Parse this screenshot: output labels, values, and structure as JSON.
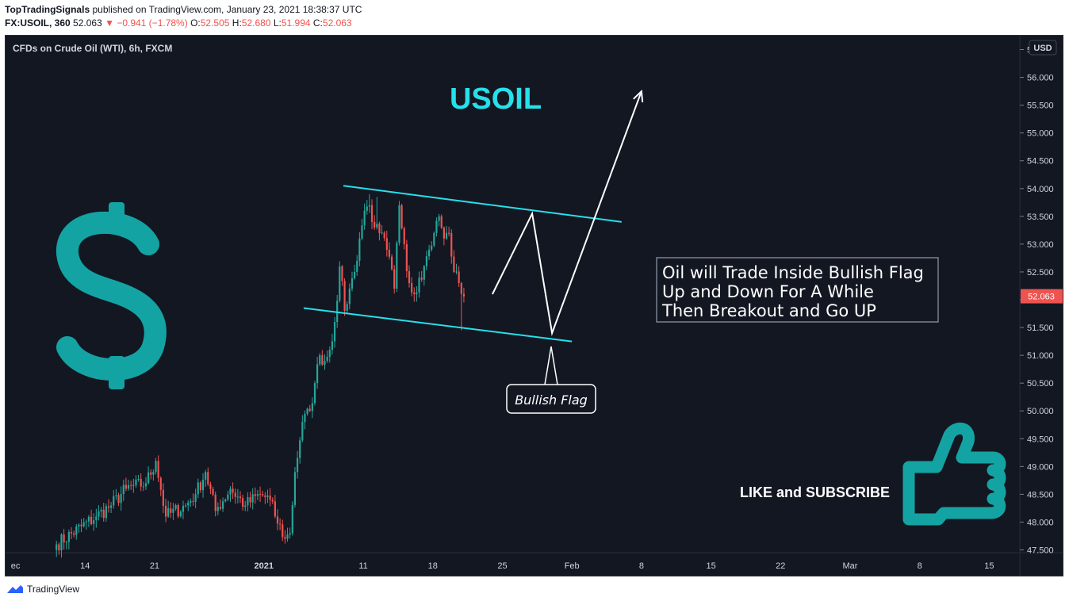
{
  "header": {
    "author": "TopTradingSignals",
    "published": "published on TradingView.com, January 23, 2021 18:38:37 UTC",
    "symbol": "FX:USOIL, 360",
    "last": "52.063",
    "change": "−0.941 (−1.78%)",
    "open_label": "O:",
    "open": "52.505",
    "high_label": "H:",
    "high": "52.680",
    "low_label": "L:",
    "low": "51.994",
    "close_label": "C:",
    "close": "52.063"
  },
  "footer": {
    "brand": "TradingView"
  },
  "colors": {
    "background": "#131722",
    "up": "#26a69a",
    "down": "#ef5350",
    "channel": "#26e0ea",
    "accent": "#14a3a3",
    "text": "#d1d4dc"
  },
  "chart_data": {
    "type": "candlestick",
    "title": "CFDs on Crude Oil (WTI), 6h, FXCM",
    "currency": "USD",
    "last_price_label": "52.063",
    "ylim": [
      47.45,
      56.75
    ],
    "y_ticks": [
      "56.500",
      "56.000",
      "55.500",
      "55.000",
      "54.500",
      "54.000",
      "53.500",
      "53.000",
      "52.500",
      "52.000",
      "51.500",
      "51.000",
      "50.500",
      "50.000",
      "49.500",
      "49.000",
      "48.500",
      "48.000",
      "47.500"
    ],
    "x_tick_labels": [
      "ec",
      "14",
      "21",
      "2021",
      "11",
      "18",
      "25",
      "Feb",
      "8",
      "15",
      "22",
      "Mar",
      "8",
      "15"
    ],
    "x_range": [
      "2020-12-06",
      "2021-03-18"
    ],
    "candles_start": "2020-12-11",
    "candles_per_day": 4,
    "close_anchors": [
      [
        0,
        47.6
      ],
      [
        16,
        48.1
      ],
      [
        22,
        48.3
      ],
      [
        28,
        48.6
      ],
      [
        36,
        48.7
      ],
      [
        40,
        49.1
      ],
      [
        44,
        48.1
      ],
      [
        52,
        48.3
      ],
      [
        56,
        48.5
      ],
      [
        60,
        48.9
      ],
      [
        64,
        48.2
      ],
      [
        70,
        48.6
      ],
      [
        76,
        48.3
      ],
      [
        82,
        48.5
      ],
      [
        86,
        48.4
      ],
      [
        88,
        48.1
      ],
      [
        92,
        47.7
      ],
      [
        94,
        47.8
      ],
      [
        96,
        48.9
      ],
      [
        99,
        49.8
      ],
      [
        102,
        50.0
      ],
      [
        104,
        50.5
      ],
      [
        106,
        51.0
      ],
      [
        108,
        50.9
      ],
      [
        110,
        51.1
      ],
      [
        112,
        51.6
      ],
      [
        114,
        52.6
      ],
      [
        116,
        51.8
      ],
      [
        118,
        52.2
      ],
      [
        120,
        52.5
      ],
      [
        122,
        53.1
      ],
      [
        124,
        53.6
      ],
      [
        126,
        53.7
      ],
      [
        128,
        53.3
      ],
      [
        130,
        53.2
      ],
      [
        133,
        52.9
      ],
      [
        136,
        52.2
      ],
      [
        138,
        53.7
      ],
      [
        140,
        53.0
      ],
      [
        142,
        52.3
      ],
      [
        144,
        52.1
      ],
      [
        146,
        52.4
      ],
      [
        148,
        52.6
      ],
      [
        150,
        52.9
      ],
      [
        152,
        53.2
      ],
      [
        154,
        53.5
      ],
      [
        156,
        53.1
      ],
      [
        158,
        53.2
      ],
      [
        160,
        52.5
      ],
      [
        162,
        52.3
      ],
      [
        164,
        52.06
      ]
    ],
    "wick_extremes": [
      {
        "index": 126,
        "high": 53.9
      },
      {
        "index": 129,
        "high": 53.85
      },
      {
        "index": 163,
        "low": 51.45
      }
    ],
    "annotations": {
      "headline": "USOIL",
      "note_lines": [
        "Oil will Trade Inside Bullish Flag",
        "Up and Down For A While",
        "Then Breakout and Go UP"
      ],
      "callout": "Bullish Flag",
      "cta": "LIKE and SUBSCRIBE",
      "upper_channel": [
        [
          "2021-01-09",
          54.05
        ],
        [
          "2021-02-06",
          53.4
        ]
      ],
      "lower_channel": [
        [
          "2021-01-05",
          51.85
        ],
        [
          "2021-02-01",
          51.25
        ]
      ],
      "projection": [
        [
          "2021-01-24",
          52.1
        ],
        [
          "2021-01-28",
          53.55
        ],
        [
          "2021-01-30",
          51.4
        ],
        [
          "2021-02-08",
          55.75
        ]
      ]
    },
    "icons": [
      "dollar-sign-icon",
      "thumbs-up-icon"
    ]
  }
}
